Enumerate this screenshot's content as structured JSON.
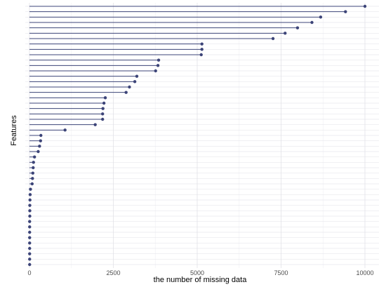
{
  "chart_data": {
    "type": "lollipop",
    "title": "",
    "xlabel": "the number of missing data",
    "ylabel": "Features",
    "xlim": [
      0,
      10000
    ],
    "xticks": [
      0,
      2500,
      5000,
      7500,
      10000
    ],
    "xtick_labels": [
      "0",
      "2500",
      "5000",
      "7500",
      "10000"
    ],
    "grid": true,
    "color": "#3c4478",
    "values": [
      10000,
      9420,
      8680,
      8420,
      7990,
      7620,
      7260,
      5140,
      5140,
      5120,
      3850,
      3830,
      3760,
      3200,
      3140,
      2980,
      2880,
      2260,
      2220,
      2190,
      2180,
      2180,
      1960,
      1060,
      340,
      330,
      300,
      260,
      150,
      120,
      110,
      100,
      90,
      80,
      30,
      20,
      15,
      10,
      10,
      10,
      5,
      5,
      5,
      5,
      5,
      5,
      5,
      5,
      5
    ]
  }
}
